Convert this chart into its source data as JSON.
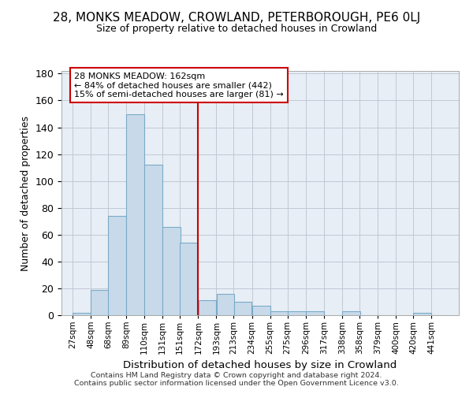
{
  "title1": "28, MONKS MEADOW, CROWLAND, PETERBOROUGH, PE6 0LJ",
  "title2": "Size of property relative to detached houses in Crowland",
  "xlabel": "Distribution of detached houses by size in Crowland",
  "ylabel": "Number of detached properties",
  "categories": [
    "27sqm",
    "48sqm",
    "68sqm",
    "89sqm",
    "110sqm",
    "131sqm",
    "151sqm",
    "172sqm",
    "193sqm",
    "213sqm",
    "234sqm",
    "255sqm",
    "275sqm",
    "296sqm",
    "317sqm",
    "338sqm",
    "358sqm",
    "379sqm",
    "400sqm",
    "420sqm",
    "441sqm"
  ],
  "values": [
    2,
    19,
    74,
    150,
    112,
    66,
    54,
    11,
    16,
    10,
    7,
    3,
    3,
    3,
    0,
    3,
    0,
    0,
    0,
    2,
    0
  ],
  "bar_color": "#c8daea",
  "bar_edge_color": "#7aaac8",
  "annotation_line1": "28 MONKS MEADOW: 162sqm",
  "annotation_line2": "← 84% of detached houses are smaller (442)",
  "annotation_line3": "15% of semi-detached houses are larger (81) →",
  "vline_color": "#cc0000",
  "footer1": "Contains HM Land Registry data © Crown copyright and database right 2024.",
  "footer2": "Contains public sector information licensed under the Open Government Licence v3.0.",
  "bg_color": "#e8eef5",
  "ylim_max": 182,
  "yticks": [
    0,
    20,
    40,
    60,
    80,
    100,
    120,
    140,
    160,
    180
  ],
  "bin_starts": [
    27,
    48,
    68,
    89,
    110,
    131,
    151,
    172,
    193,
    213,
    234,
    255,
    275,
    296,
    317,
    338,
    358,
    379,
    400,
    420,
    441
  ],
  "bin_width": 21,
  "vline_x": 172
}
